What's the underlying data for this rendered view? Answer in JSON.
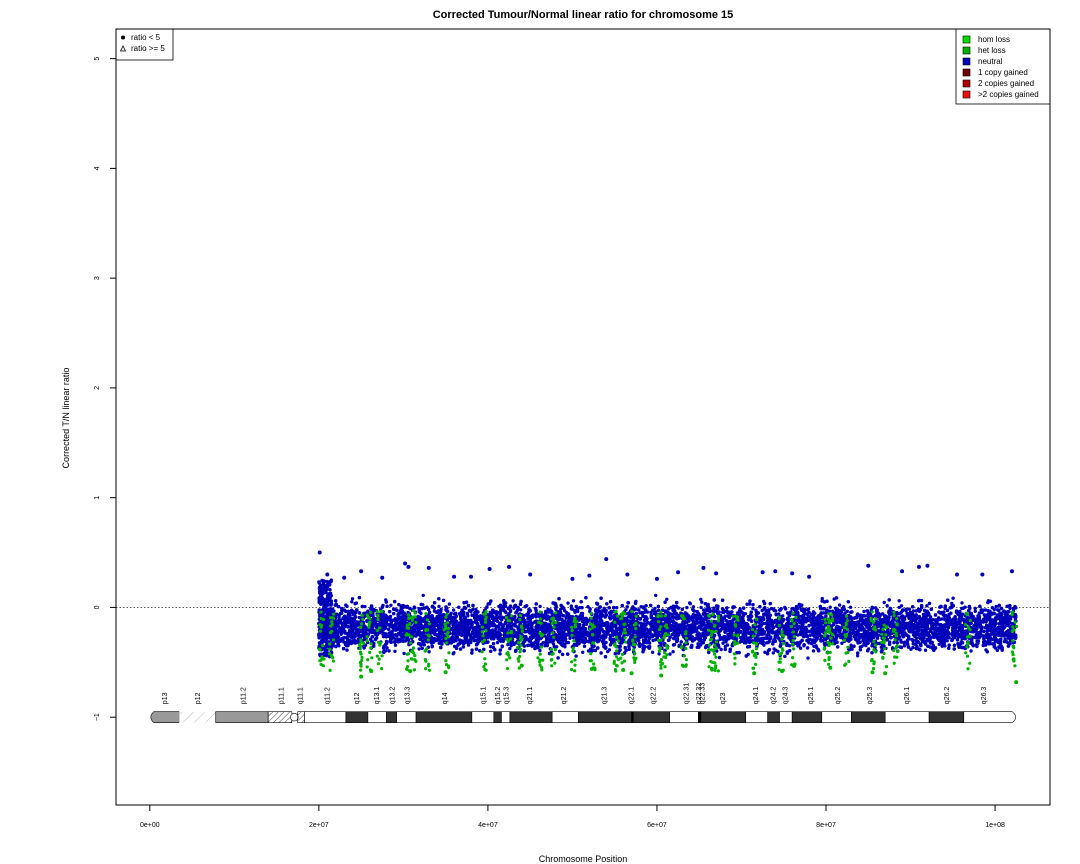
{
  "chart_data": {
    "type": "scatter",
    "title": "Corrected Tumour/Normal linear ratio for chromosome  15",
    "xlabel": "Chromosome Position",
    "ylabel": "Corrected T/N linear ratio",
    "xlim": [
      -4000000,
      106500000
    ],
    "ylim": [
      -1.8,
      5.27
    ],
    "x_ticks": [
      0,
      20000000,
      40000000,
      60000000,
      80000000,
      100000000
    ],
    "x_tick_labels": [
      "0e+00",
      "2e+07",
      "4e+07",
      "6e+07",
      "8e+07",
      "1e+08"
    ],
    "y_ticks": [
      -1,
      0,
      1,
      2,
      3,
      4,
      5
    ],
    "y_tick_labels": [
      "−1",
      "0",
      "1",
      "2",
      "3",
      "4",
      "5"
    ],
    "reference_line": 0,
    "data_range": [
      20000000,
      102500000
    ],
    "shape_legend": {
      "position": "top-left",
      "items": [
        {
          "symbol": "dot",
          "label": "ratio < 5"
        },
        {
          "symbol": "triangle",
          "label": "ratio >= 5"
        }
      ]
    },
    "color_legend": {
      "position": "top-right",
      "items": [
        {
          "label": "hom loss",
          "color": "#00dd00"
        },
        {
          "label": "het loss",
          "color": "#00b000"
        },
        {
          "label": "neutral",
          "color": "#0000bb"
        },
        {
          "label": "1 copy gained",
          "color": "#700000"
        },
        {
          "label": "2 copies gained",
          "color": "#b00000"
        },
        {
          "label": ">2 copies gained",
          "color": "#ee1111"
        }
      ]
    },
    "series": [
      {
        "name": "neutral",
        "color": "#0000bb",
        "points": [
          [
            20100000,
            0.5
          ],
          [
            21000000,
            0.3
          ],
          [
            23000000,
            0.27
          ],
          [
            25000000,
            0.33
          ],
          [
            27500000,
            0.27
          ],
          [
            30200000,
            0.4
          ],
          [
            30600000,
            0.37
          ],
          [
            33000000,
            0.36
          ],
          [
            36000000,
            0.28
          ],
          [
            38000000,
            0.28
          ],
          [
            40200000,
            0.35
          ],
          [
            42500000,
            0.37
          ],
          [
            45000000,
            0.3
          ],
          [
            50000000,
            0.26
          ],
          [
            52000000,
            0.29
          ],
          [
            54000000,
            0.44
          ],
          [
            56500000,
            0.3
          ],
          [
            60000000,
            0.26
          ],
          [
            62500000,
            0.32
          ],
          [
            65500000,
            0.36
          ],
          [
            67000000,
            0.31
          ],
          [
            72500000,
            0.32
          ],
          [
            74000000,
            0.33
          ],
          [
            76000000,
            0.31
          ],
          [
            78000000,
            0.28
          ],
          [
            85000000,
            0.38
          ],
          [
            89000000,
            0.33
          ],
          [
            91000000,
            0.37
          ],
          [
            92000000,
            0.38
          ],
          [
            95500000,
            0.3
          ],
          [
            98500000,
            0.3
          ],
          [
            102000000,
            0.33
          ]
        ]
      },
      {
        "name": "het loss",
        "color": "#00b000",
        "points": [
          [
            25000000,
            -0.63
          ],
          [
            26200000,
            -0.58
          ],
          [
            30800000,
            -0.58
          ],
          [
            35000000,
            -0.59
          ],
          [
            44000000,
            -0.53
          ],
          [
            52300000,
            -0.56
          ],
          [
            56000000,
            -0.57
          ],
          [
            57000000,
            -0.6
          ],
          [
            60500000,
            -0.62
          ],
          [
            66500000,
            -0.56
          ],
          [
            71500000,
            -0.6
          ],
          [
            74800000,
            -0.58
          ],
          [
            80500000,
            -0.55
          ],
          [
            85500000,
            -0.59
          ],
          [
            87000000,
            -0.6
          ],
          [
            102500000,
            -0.68
          ]
        ]
      }
    ],
    "ideogram": {
      "y": -1,
      "band_labels": [
        {
          "label": "p13",
          "x": 1800000
        },
        {
          "label": "p12",
          "x": 5700000
        },
        {
          "label": "p11.2",
          "x": 11100000
        },
        {
          "label": "p11.1",
          "x": 15600000
        },
        {
          "label": "q11.1",
          "x": 17800000
        },
        {
          "label": "q11.2",
          "x": 21000000
        },
        {
          "label": "q12",
          "x": 24500000
        },
        {
          "label": "q13.1",
          "x": 26900000
        },
        {
          "label": "q13.2",
          "x": 28700000
        },
        {
          "label": "q13.3",
          "x": 30500000
        },
        {
          "label": "q14",
          "x": 34900000
        },
        {
          "label": "q15.1",
          "x": 39500000
        },
        {
          "label": "q15.2",
          "x": 41200000
        },
        {
          "label": "q15.3",
          "x": 42200000
        },
        {
          "label": "q21.1",
          "x": 45000000
        },
        {
          "label": "q21.2",
          "x": 49000000
        },
        {
          "label": "q21.3",
          "x": 53800000
        },
        {
          "label": "q22.1",
          "x": 57000000
        },
        {
          "label": "q22.2",
          "x": 59600000
        },
        {
          "label": "q22.31",
          "x": 63500000
        },
        {
          "label": "q22.32",
          "x": 65000000
        },
        {
          "label": "q22.33",
          "x": 65400000
        },
        {
          "label": "q23",
          "x": 67800000
        },
        {
          "label": "q24.1",
          "x": 71700000
        },
        {
          "label": "q24.2",
          "x": 73800000
        },
        {
          "label": "q24.3",
          "x": 75200000
        },
        {
          "label": "q25.1",
          "x": 78200000
        },
        {
          "label": "q25.2",
          "x": 81400000
        },
        {
          "label": "q25.3",
          "x": 85200000
        },
        {
          "label": "q26.1",
          "x": 89600000
        },
        {
          "label": "q26.2",
          "x": 94300000
        },
        {
          "label": "q26.3",
          "x": 98700000
        }
      ]
    }
  }
}
